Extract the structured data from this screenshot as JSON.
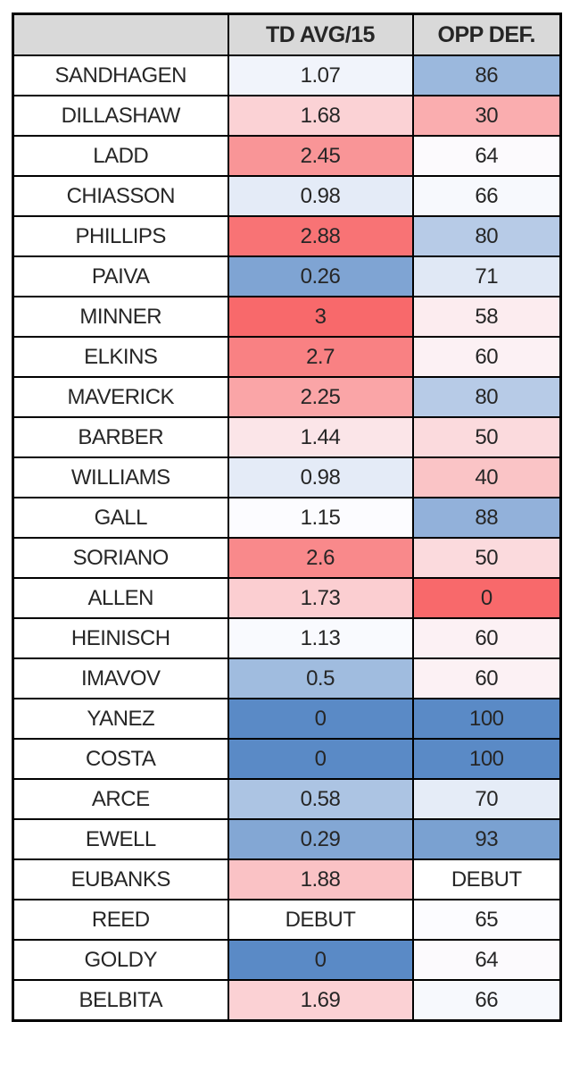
{
  "table": {
    "headers": {
      "name": "",
      "td_avg": "TD AVG/15",
      "opp_def": "OPP DEF."
    },
    "rows": [
      {
        "name": "SANDHAGEN",
        "td": "1.07",
        "td_color": "#F1F4FB",
        "opp": "86",
        "opp_color": "#9BB8DD"
      },
      {
        "name": "DILLASHAW",
        "td": "1.68",
        "td_color": "#FBD2D5",
        "opp": "30",
        "opp_color": "#FAADAF"
      },
      {
        "name": "LADD",
        "td": "2.45",
        "td_color": "#F99597",
        "opp": "64",
        "opp_color": "#FCFAFD"
      },
      {
        "name": "CHIASSON",
        "td": "0.98",
        "td_color": "#E4EBF7",
        "opp": "66",
        "opp_color": "#F7F9FD"
      },
      {
        "name": "PHILLIPS",
        "td": "2.88",
        "td_color": "#F87375",
        "opp": "80",
        "opp_color": "#B7CBE7"
      },
      {
        "name": "PAIVA",
        "td": "0.26",
        "td_color": "#7FA4D3",
        "opp": "71",
        "opp_color": "#E0E8F5"
      },
      {
        "name": "MINNER",
        "td": "3",
        "td_color": "#F8696B",
        "opp": "58",
        "opp_color": "#FCECEF"
      },
      {
        "name": "ELKINS",
        "td": "2.7",
        "td_color": "#F98183",
        "opp": "60",
        "opp_color": "#FCF1F4"
      },
      {
        "name": "MAVERICK",
        "td": "2.25",
        "td_color": "#FAA5A7",
        "opp": "80",
        "opp_color": "#B7CBE7"
      },
      {
        "name": "BARBER",
        "td": "1.44",
        "td_color": "#FBE5E8",
        "opp": "50",
        "opp_color": "#FBDADD"
      },
      {
        "name": "WILLIAMS",
        "td": "0.98",
        "td_color": "#E4EBF7",
        "opp": "40",
        "opp_color": "#FAC4C6"
      },
      {
        "name": "GALL",
        "td": "1.15",
        "td_color": "#FCFCFF",
        "opp": "88",
        "opp_color": "#92B1DA"
      },
      {
        "name": "SORIANO",
        "td": "2.6",
        "td_color": "#F9898B",
        "opp": "50",
        "opp_color": "#FBDADD"
      },
      {
        "name": "ALLEN",
        "td": "1.73",
        "td_color": "#FBCED1",
        "opp": "0",
        "opp_color": "#F8696B"
      },
      {
        "name": "HEINISCH",
        "td": "1.13",
        "td_color": "#F9FAFE",
        "opp": "60",
        "opp_color": "#FCF1F4"
      },
      {
        "name": "IMAVOV",
        "td": "0.5",
        "td_color": "#A0BCDF",
        "opp": "60",
        "opp_color": "#FCF1F4"
      },
      {
        "name": "YANEZ",
        "td": "0",
        "td_color": "#5A8AC6",
        "opp": "100",
        "opp_color": "#5A8AC6"
      },
      {
        "name": "COSTA",
        "td": "0",
        "td_color": "#5A8AC6",
        "opp": "100",
        "opp_color": "#5A8AC6"
      },
      {
        "name": "ARCE",
        "td": "0.58",
        "td_color": "#ACC4E3",
        "opp": "70",
        "opp_color": "#E5ECF7"
      },
      {
        "name": "EWELL",
        "td": "0.29",
        "td_color": "#83A7D4",
        "opp": "93",
        "opp_color": "#7AA1D1"
      },
      {
        "name": "EUBANKS",
        "td": "1.88",
        "td_color": "#FAC2C5",
        "opp": "DEBUT",
        "opp_color": "#FFFFFF"
      },
      {
        "name": "REED",
        "td": "DEBUT",
        "td_color": "#FFFFFF",
        "opp": "65",
        "opp_color": "#FCFCFF"
      },
      {
        "name": "GOLDY",
        "td": "0",
        "td_color": "#5A8AC6",
        "opp": "64",
        "opp_color": "#FCFAFD"
      },
      {
        "name": "BELBITA",
        "td": "1.69",
        "td_color": "#FBD1D4",
        "opp": "66",
        "opp_color": "#F7F9FD"
      }
    ]
  },
  "colors": {
    "header_bg": "#D9D9D9",
    "border": "#000000",
    "scale_red_extreme": "#F8696B",
    "scale_white_mid": "#FCFCFF",
    "scale_blue_extreme": "#5A8AC6"
  },
  "chart_data": {
    "type": "table",
    "title": "",
    "columns": [
      "",
      "TD AVG/15",
      "OPP DEF."
    ],
    "rows": [
      [
        "SANDHAGEN",
        "1.07",
        "86"
      ],
      [
        "DILLASHAW",
        "1.68",
        "30"
      ],
      [
        "LADD",
        "2.45",
        "64"
      ],
      [
        "CHIASSON",
        "0.98",
        "66"
      ],
      [
        "PHILLIPS",
        "2.88",
        "80"
      ],
      [
        "PAIVA",
        "0.26",
        "71"
      ],
      [
        "MINNER",
        "3",
        "58"
      ],
      [
        "ELKINS",
        "2.7",
        "60"
      ],
      [
        "MAVERICK",
        "2.25",
        "80"
      ],
      [
        "BARBER",
        "1.44",
        "50"
      ],
      [
        "WILLIAMS",
        "0.98",
        "40"
      ],
      [
        "GALL",
        "1.15",
        "88"
      ],
      [
        "SORIANO",
        "2.6",
        "50"
      ],
      [
        "ALLEN",
        "1.73",
        "0"
      ],
      [
        "HEINISCH",
        "1.13",
        "60"
      ],
      [
        "IMAVOV",
        "0.5",
        "60"
      ],
      [
        "YANEZ",
        "0",
        "100"
      ],
      [
        "COSTA",
        "0",
        "100"
      ],
      [
        "ARCE",
        "0.58",
        "70"
      ],
      [
        "EWELL",
        "0.29",
        "93"
      ],
      [
        "EUBANKS",
        "1.88",
        "DEBUT"
      ],
      [
        "REED",
        "DEBUT",
        "65"
      ],
      [
        "GOLDY",
        "0",
        "64"
      ],
      [
        "BELBITA",
        "1.69",
        "66"
      ]
    ],
    "conditional_formatting": {
      "style": "3-color-scale",
      "red": "#F8696B",
      "white": "#FCFCFF",
      "blue": "#5A8AC6",
      "td_avg_scale": "high=red, low=blue, mid~1.15=white",
      "opp_def_scale": "low=red, high=blue, mid~65=white"
    }
  }
}
